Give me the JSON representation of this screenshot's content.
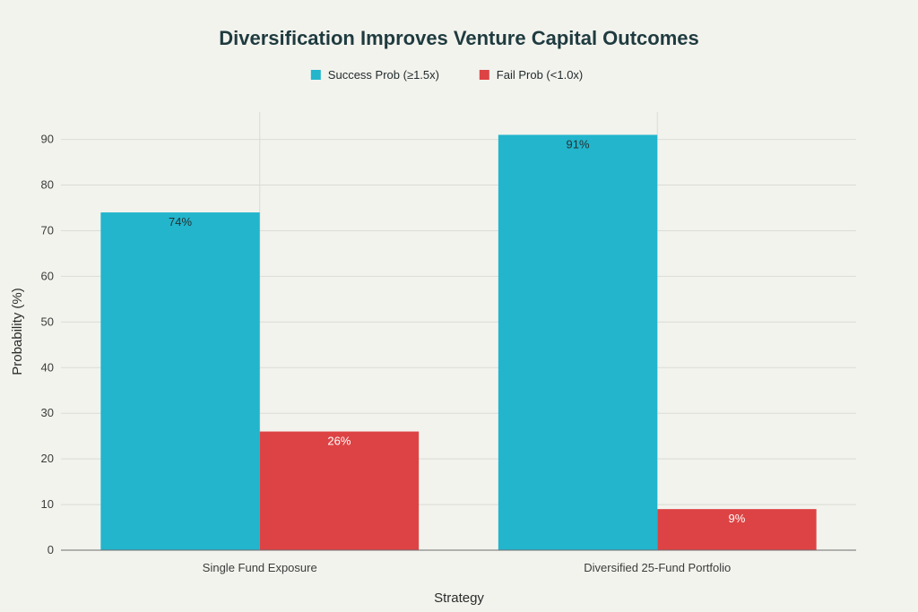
{
  "chart_data": {
    "type": "bar",
    "title": "Diversification Improves Venture Capital Outcomes",
    "xlabel": "Strategy",
    "ylabel": "Probability (%)",
    "categories": [
      "Single Fund Exposure",
      "Diversified 25-Fund Portfolio"
    ],
    "series": [
      {
        "name": "Success Prob (≥1.5x)",
        "color": "#22b5cc",
        "values": [
          74,
          91
        ],
        "labels": [
          "74%",
          "91%"
        ],
        "label_color": "#243234"
      },
      {
        "name": "Fail Prob (<1.0x)",
        "color": "#dd4344",
        "values": [
          26,
          9
        ],
        "labels": [
          "26%",
          "9%"
        ],
        "label_color": "#ffffff"
      }
    ],
    "ylim": [
      0,
      96
    ],
    "yticks": [
      0,
      10,
      20,
      30,
      40,
      50,
      60,
      70,
      80,
      90
    ],
    "grid": true,
    "legend_position": "top-center"
  }
}
